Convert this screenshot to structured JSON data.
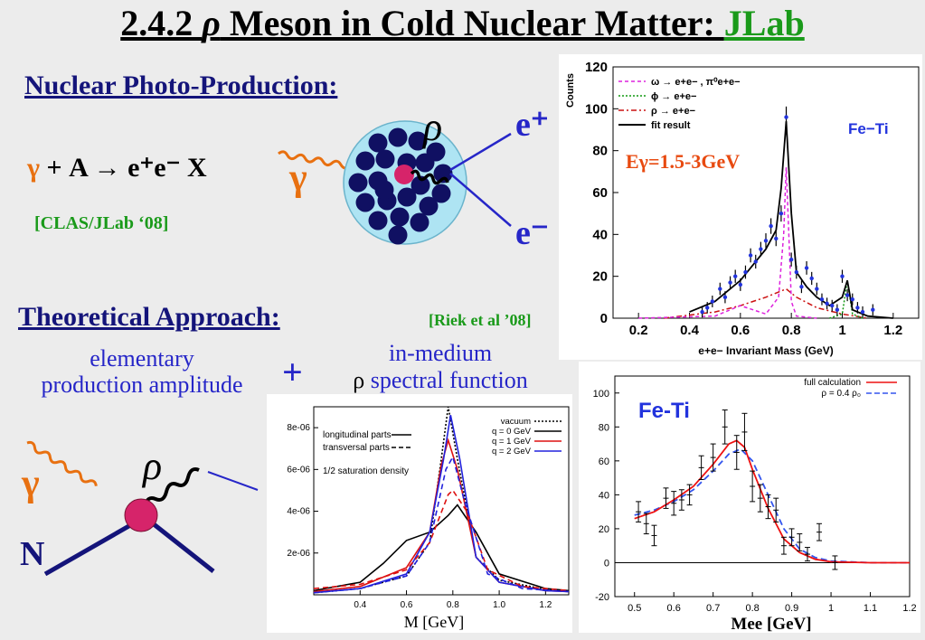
{
  "title": {
    "prefix": "2.4.2 ",
    "rho": "ρ",
    "middle": " Meson in Cold Nuclear Matter: ",
    "lab": "JLab"
  },
  "left": {
    "header1": "Nuclear Photo-Production:",
    "reaction": {
      "gamma": "γ",
      "rest": " + A → e⁺e⁻ X"
    },
    "clas": "[CLAS/JLab ‘08]",
    "header2": "Theoretical Approach:",
    "riek": "[Riek et al ’08]",
    "amp": [
      "elementary",
      "production amplitude"
    ],
    "plus": "+",
    "spec": [
      "in-medium",
      "spectral function"
    ],
    "spec_rho": "ρ"
  },
  "diagram_top": {
    "gamma": "γ",
    "rho": "ρ",
    "eplus": "e⁺",
    "eminus": "e⁻"
  },
  "diagram_bottom": {
    "gamma": "γ",
    "rho": "ρ",
    "N": "N"
  },
  "colors": {
    "title_lab": "#1a9a1a",
    "navy": "#14147a",
    "orange": "#e87010",
    "blue_lep": "#2626c8"
  },
  "chart_data": [
    {
      "type": "scatter",
      "ylabel": "Counts",
      "xlabel": "e+e− Invariant Mass (GeV)",
      "label": "Fe−Ti",
      "energy": "Eγ=1.5-3GeV",
      "xlim": [
        0.1,
        1.3
      ],
      "ylim": [
        0,
        120
      ],
      "xticks": [
        0.2,
        0.4,
        0.6,
        0.8,
        1,
        1.2
      ],
      "yticks": [
        0,
        20,
        40,
        60,
        80,
        100,
        120
      ],
      "legend": [
        {
          "sym": "ω",
          "text": "→ e+e− , π⁰e+e−"
        },
        {
          "sym": "ϕ",
          "text": "→ e+e−"
        },
        {
          "sym": "ρ",
          "text": "→ e+e−"
        },
        {
          "sym": "",
          "text": "fit result"
        }
      ],
      "points": [
        [
          0.45,
          3
        ],
        [
          0.47,
          5
        ],
        [
          0.49,
          8
        ],
        [
          0.52,
          14
        ],
        [
          0.54,
          10
        ],
        [
          0.56,
          17
        ],
        [
          0.58,
          20
        ],
        [
          0.6,
          16
        ],
        [
          0.62,
          22
        ],
        [
          0.64,
          30
        ],
        [
          0.66,
          27
        ],
        [
          0.68,
          33
        ],
        [
          0.7,
          37
        ],
        [
          0.72,
          44
        ],
        [
          0.74,
          38
        ],
        [
          0.76,
          50
        ],
        [
          0.78,
          96
        ],
        [
          0.8,
          28
        ],
        [
          0.82,
          22
        ],
        [
          0.84,
          15
        ],
        [
          0.86,
          24
        ],
        [
          0.88,
          19
        ],
        [
          0.9,
          14
        ],
        [
          0.92,
          9
        ],
        [
          0.94,
          7
        ],
        [
          0.96,
          6
        ],
        [
          0.98,
          4
        ],
        [
          1.0,
          20
        ],
        [
          1.02,
          11
        ],
        [
          1.04,
          9
        ],
        [
          1.06,
          5
        ],
        [
          1.08,
          3
        ],
        [
          1.12,
          4
        ]
      ],
      "fit": [
        [
          0.4,
          3
        ],
        [
          0.5,
          8
        ],
        [
          0.6,
          18
        ],
        [
          0.7,
          33
        ],
        [
          0.74,
          42
        ],
        [
          0.76,
          62
        ],
        [
          0.78,
          94
        ],
        [
          0.8,
          50
        ],
        [
          0.82,
          22
        ],
        [
          0.86,
          15
        ],
        [
          0.9,
          10
        ],
        [
          0.95,
          6
        ],
        [
          1.0,
          10
        ],
        [
          1.02,
          18
        ],
        [
          1.04,
          4
        ],
        [
          1.1,
          1
        ],
        [
          1.2,
          0
        ]
      ],
      "omega": [
        [
          0.2,
          0
        ],
        [
          0.5,
          1
        ],
        [
          0.6,
          6
        ],
        [
          0.7,
          2
        ],
        [
          0.75,
          10
        ],
        [
          0.77,
          40
        ],
        [
          0.78,
          72
        ],
        [
          0.79,
          40
        ],
        [
          0.8,
          8
        ],
        [
          0.82,
          1
        ],
        [
          0.9,
          0
        ]
      ],
      "rho": [
        [
          0.3,
          0
        ],
        [
          0.5,
          3
        ],
        [
          0.6,
          6
        ],
        [
          0.7,
          10
        ],
        [
          0.78,
          14
        ],
        [
          0.82,
          10
        ],
        [
          0.9,
          5
        ],
        [
          1.0,
          2
        ],
        [
          1.1,
          0
        ]
      ],
      "phi": [
        [
          0.95,
          0
        ],
        [
          1.0,
          2
        ],
        [
          1.02,
          18
        ],
        [
          1.04,
          2
        ],
        [
          1.08,
          0
        ]
      ]
    },
    {
      "type": "line",
      "xlabel": "M [GeV]",
      "xlim": [
        0.2,
        1.3
      ],
      "ylim": [
        0,
        9e-06
      ],
      "xticks": [
        "0.4",
        "0.6",
        "0.8",
        "1.0",
        "1.2"
      ],
      "yticks": [
        "2e-06",
        "4e-06",
        "6e-06",
        "8e-06"
      ],
      "annotation": "1/2 saturation density",
      "legend_left": [
        "longitudinal parts",
        "transversal parts"
      ],
      "legend_right": [
        "vacuum",
        "q = 0 GeV",
        "q = 1 GeV",
        "q = 2 GeV"
      ],
      "series": [
        {
          "name": "vacuum",
          "values": [
            [
              0.2,
              1e-07
            ],
            [
              0.4,
              3e-07
            ],
            [
              0.6,
              9e-07
            ],
            [
              0.7,
              2.5e-06
            ],
            [
              0.75,
              6.5e-06
            ],
            [
              0.78,
              9e-06
            ],
            [
              0.82,
              6.5e-06
            ],
            [
              0.9,
              1.8e-06
            ],
            [
              1.0,
              7e-07
            ],
            [
              1.2,
              2.5e-07
            ],
            [
              1.3,
              1.5e-07
            ]
          ]
        },
        {
          "name": "q = 0 GeV long",
          "values": [
            [
              0.2,
              2e-07
            ],
            [
              0.4,
              6e-07
            ],
            [
              0.5,
              1.5e-06
            ],
            [
              0.6,
              2.6e-06
            ],
            [
              0.7,
              3e-06
            ],
            [
              0.78,
              3.8e-06
            ],
            [
              0.82,
              4.3e-06
            ],
            [
              0.9,
              3e-06
            ],
            [
              1.0,
              1e-06
            ],
            [
              1.2,
              3e-07
            ],
            [
              1.3,
              2e-07
            ]
          ]
        },
        {
          "name": "q = 1 GeV trans",
          "values": [
            [
              0.2,
              1.5e-07
            ],
            [
              0.4,
              4e-07
            ],
            [
              0.6,
              1.3e-06
            ],
            [
              0.7,
              3e-06
            ],
            [
              0.75,
              6.2e-06
            ],
            [
              0.78,
              7.4e-06
            ],
            [
              0.82,
              6e-06
            ],
            [
              0.9,
              1.8e-06
            ],
            [
              1.0,
              6e-07
            ],
            [
              1.2,
              2e-07
            ],
            [
              1.3,
              1.5e-07
            ]
          ]
        },
        {
          "name": "q = 2 GeV trans",
          "values": [
            [
              0.2,
              1e-07
            ],
            [
              0.4,
              3e-07
            ],
            [
              0.6,
              1e-06
            ],
            [
              0.7,
              3e-06
            ],
            [
              0.76,
              6.5e-06
            ],
            [
              0.79,
              8.6e-06
            ],
            [
              0.83,
              6.5e-06
            ],
            [
              0.9,
              1.8e-06
            ],
            [
              1.0,
              6e-07
            ],
            [
              1.2,
              2e-07
            ],
            [
              1.3,
              1.5e-07
            ]
          ]
        },
        {
          "name": "q = 1 GeV long",
          "values": [
            [
              0.2,
              3e-07
            ],
            [
              0.4,
              5e-07
            ],
            [
              0.6,
              1.2e-06
            ],
            [
              0.7,
              2.5e-06
            ],
            [
              0.78,
              4.8e-06
            ],
            [
              0.8,
              5e-06
            ],
            [
              0.86,
              4e-06
            ],
            [
              0.95,
              1.2e-06
            ],
            [
              1.1,
              4e-07
            ],
            [
              1.3,
              2e-07
            ]
          ]
        },
        {
          "name": "q = 2 GeV long",
          "values": [
            [
              0.2,
              1e-07
            ],
            [
              0.4,
              3e-07
            ],
            [
              0.6,
              9e-07
            ],
            [
              0.7,
              2.5e-06
            ],
            [
              0.77,
              6e-06
            ],
            [
              0.8,
              6.6e-06
            ],
            [
              0.85,
              4.5e-06
            ],
            [
              0.95,
              1e-06
            ],
            [
              1.1,
              3e-07
            ],
            [
              1.3,
              1.5e-07
            ]
          ]
        }
      ]
    },
    {
      "type": "scatter",
      "label": "Fe-Ti",
      "xlabel": "Mee [GeV]",
      "xlim": [
        0.45,
        1.2
      ],
      "ylim": [
        -20,
        110
      ],
      "xticks": [
        "0.5",
        "0.6",
        "0.7",
        "0.8",
        "0.9",
        "1",
        "1.1",
        "1.2"
      ],
      "yticks": [
        "-20",
        "0",
        "20",
        "40",
        "60",
        "80",
        "100"
      ],
      "legend": [
        "full calculation",
        "ρ = 0.4 ρ₀"
      ],
      "points": [
        [
          0.51,
          30,
          6
        ],
        [
          0.53,
          23,
          6
        ],
        [
          0.55,
          16,
          6
        ],
        [
          0.58,
          38,
          6
        ],
        [
          0.6,
          35,
          7
        ],
        [
          0.62,
          37,
          6
        ],
        [
          0.64,
          40,
          6
        ],
        [
          0.67,
          56,
          7
        ],
        [
          0.7,
          62,
          8
        ],
        [
          0.73,
          80,
          10
        ],
        [
          0.76,
          65,
          10
        ],
        [
          0.78,
          77,
          11
        ],
        [
          0.8,
          45,
          9
        ],
        [
          0.82,
          38,
          8
        ],
        [
          0.84,
          33,
          7
        ],
        [
          0.86,
          31,
          7
        ],
        [
          0.88,
          10,
          5
        ],
        [
          0.9,
          15,
          5
        ],
        [
          0.92,
          12,
          5
        ],
        [
          0.94,
          5,
          4
        ],
        [
          0.97,
          18,
          5
        ],
        [
          1.01,
          0,
          4
        ]
      ],
      "full": [
        [
          0.5,
          26
        ],
        [
          0.55,
          30
        ],
        [
          0.6,
          37
        ],
        [
          0.65,
          45
        ],
        [
          0.7,
          58
        ],
        [
          0.74,
          70
        ],
        [
          0.76,
          72
        ],
        [
          0.78,
          68
        ],
        [
          0.8,
          55
        ],
        [
          0.84,
          32
        ],
        [
          0.88,
          14
        ],
        [
          0.92,
          6
        ],
        [
          0.96,
          2
        ],
        [
          1.0,
          0.5
        ],
        [
          1.1,
          0
        ],
        [
          1.2,
          0
        ]
      ],
      "rho04": [
        [
          0.5,
          28
        ],
        [
          0.55,
          31
        ],
        [
          0.6,
          36
        ],
        [
          0.65,
          43
        ],
        [
          0.7,
          54
        ],
        [
          0.74,
          64
        ],
        [
          0.77,
          67
        ],
        [
          0.8,
          60
        ],
        [
          0.84,
          40
        ],
        [
          0.88,
          20
        ],
        [
          0.92,
          8
        ],
        [
          0.96,
          3
        ],
        [
          1.0,
          1
        ],
        [
          1.1,
          0
        ],
        [
          1.2,
          0
        ]
      ]
    }
  ]
}
